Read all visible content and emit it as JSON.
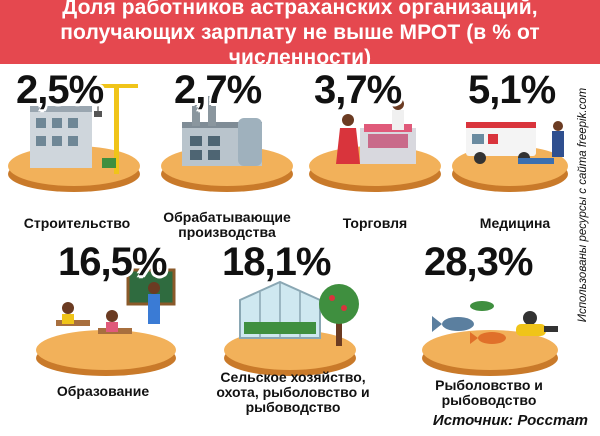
{
  "header": {
    "title": "Доля работников астраханских организаций, получающих зарплату не выше МРОТ (в % от численности)",
    "bg_color": "#e5484f"
  },
  "tiles": [
    {
      "percent": "2,5%",
      "label": "Строительство",
      "icon": "construction-icon"
    },
    {
      "percent": "2,7%",
      "label": "Обрабатывающие производства",
      "icon": "factory-icon"
    },
    {
      "percent": "3,7%",
      "label": "Торговля",
      "icon": "trade-icon"
    },
    {
      "percent": "5,1%",
      "label": "Медицина",
      "icon": "ambulance-icon"
    },
    {
      "percent": "16,5%",
      "label": "Образование",
      "icon": "classroom-icon"
    },
    {
      "percent": "18,1%",
      "label": "Сельское хозяйство, охота, рыболовство и рыбоводство",
      "icon": "greenhouse-icon"
    },
    {
      "percent": "28,3%",
      "label": "Рыболовство и рыбоводство",
      "icon": "fishing-icon"
    }
  ],
  "side_note": "Использованы ресурсы с сайта freepik.com",
  "source": "Источник: Росстат",
  "colors": {
    "disc_top": "#f2b15a",
    "disc_side": "#c97a2a"
  }
}
